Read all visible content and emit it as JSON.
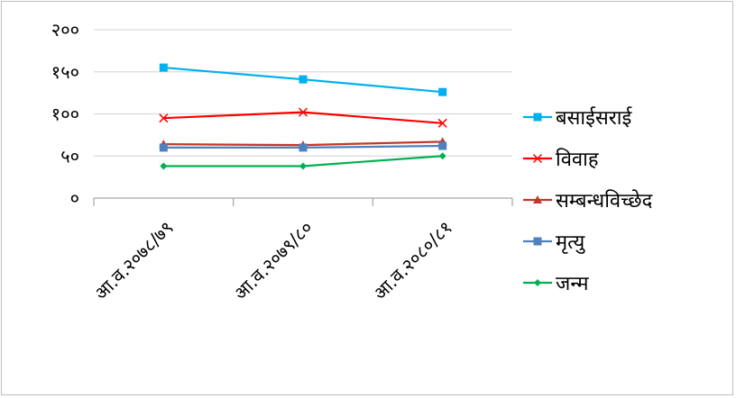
{
  "chart_data": {
    "type": "line",
    "title": "",
    "xlabel": "",
    "ylabel": "",
    "categories": [
      "आ.व.२०७८/७९",
      "आ.व.२०७९/८०",
      "आ.व.२०८०/८१"
    ],
    "y_tick_labels": [
      "०",
      "५०",
      "१००",
      "१५०",
      "२००"
    ],
    "y_ticks": [
      0,
      50,
      100,
      150,
      200
    ],
    "ylim": [
      0,
      200
    ],
    "grid": true,
    "legend_position": "right",
    "series": [
      {
        "name": "बसाईसराई",
        "values": [
          155,
          141,
          126
        ],
        "color": "#00b0f0",
        "marker": "square"
      },
      {
        "name": "विवाह",
        "values": [
          95,
          102,
          89
        ],
        "color": "#ff0000",
        "marker": "x"
      },
      {
        "name": "सम्बन्धविच्छेद",
        "values": [
          64,
          63,
          67
        ],
        "color": "#c0392b",
        "marker": "triangle"
      },
      {
        "name": "मृत्यु",
        "values": [
          60,
          60,
          62
        ],
        "color": "#4f81bd",
        "marker": "square"
      },
      {
        "name": "जन्म",
        "values": [
          38,
          38,
          50
        ],
        "color": "#00b050",
        "marker": "diamond"
      }
    ]
  }
}
